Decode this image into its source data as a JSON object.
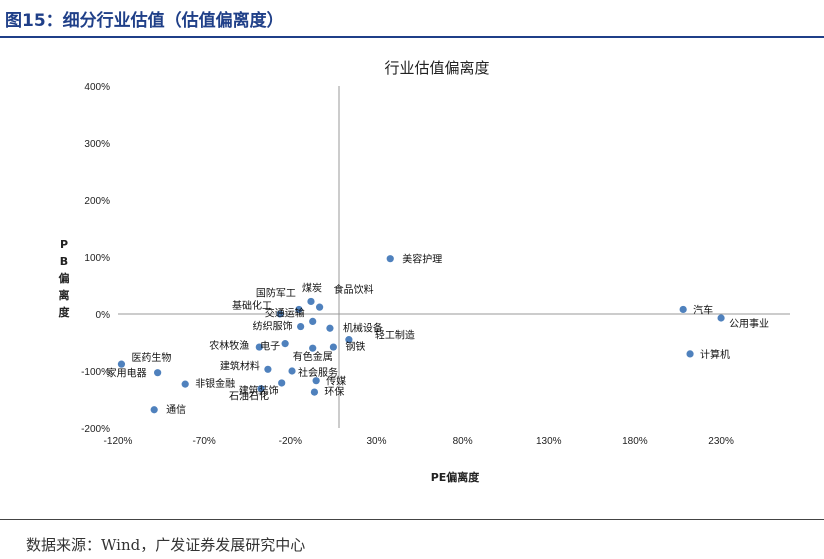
{
  "figure_title": "图15：细分行业估值（估值偏离度）",
  "source": "数据来源：Wind，广发证券发展研究中心",
  "chart_data": {
    "type": "scatter",
    "title": "行业估值偏离度",
    "xlabel": "PE偏离度",
    "ylabel": "PB偏离度",
    "x_ticks": [
      "-120%",
      "-70%",
      "-20%",
      "30%",
      "80%",
      "130%",
      "180%",
      "230%"
    ],
    "y_ticks": [
      "400%",
      "300%",
      "200%",
      "100%",
      "0%",
      "-100%",
      "-200%"
    ],
    "xlim": [
      -120,
      270
    ],
    "ylim": [
      -200,
      400
    ],
    "grid": false,
    "point_color": "#4f81bd",
    "points": [
      {
        "label": "美容护理",
        "x": 38,
        "y": 97
      },
      {
        "label": "汽车",
        "x": 208,
        "y": 8
      },
      {
        "label": "公用事业",
        "x": 230,
        "y": -7
      },
      {
        "label": "计算机",
        "x": 212,
        "y": -70
      },
      {
        "label": "煤炭",
        "x": -8,
        "y": 22
      },
      {
        "label": "食品饮料",
        "x": -3,
        "y": 12
      },
      {
        "label": "国防军工",
        "x": -15,
        "y": 8
      },
      {
        "label": "基础化工",
        "x": -26,
        "y": 0
      },
      {
        "label": "交通运输",
        "x": -7,
        "y": -13
      },
      {
        "label": "纺织服饰",
        "x": -14,
        "y": -22
      },
      {
        "label": "机械设备",
        "x": 3,
        "y": -25
      },
      {
        "label": "轻工制造",
        "x": 14,
        "y": -45
      },
      {
        "label": "电子",
        "x": -23,
        "y": -52
      },
      {
        "label": "有色金属",
        "x": -7,
        "y": -60
      },
      {
        "label": "钢铁",
        "x": 5,
        "y": -58
      },
      {
        "label": "农林牧渔",
        "x": -38,
        "y": -58
      },
      {
        "label": "医药生物",
        "x": -118,
        "y": -88
      },
      {
        "label": "家用电器",
        "x": -97,
        "y": -103
      },
      {
        "label": "建筑材料",
        "x": -33,
        "y": -97
      },
      {
        "label": "社会服务",
        "x": -19,
        "y": -100
      },
      {
        "label": "非银金融",
        "x": -81,
        "y": -123
      },
      {
        "label": "建筑装饰",
        "x": -25,
        "y": -121
      },
      {
        "label": "传媒",
        "x": -5,
        "y": -117
      },
      {
        "label": "石油石化",
        "x": -37,
        "y": -131
      },
      {
        "label": "环保",
        "x": -6,
        "y": -137
      },
      {
        "label": "通信",
        "x": -99,
        "y": -168
      }
    ]
  }
}
